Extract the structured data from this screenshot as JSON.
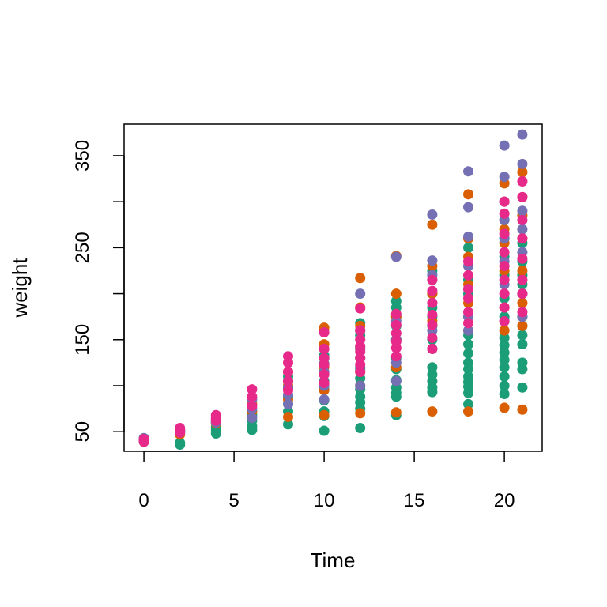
{
  "chart_data": {
    "type": "scatter",
    "title": "",
    "xlabel": "Time",
    "ylabel": "weight",
    "xlim": [
      -1.1,
      22.1
    ],
    "ylim": [
      28.7,
      384.3
    ],
    "xticks": [
      0,
      5,
      10,
      15,
      20
    ],
    "yticks": [
      50,
      150,
      250,
      350
    ],
    "xtick_labels": [
      "0",
      "5",
      "10",
      "15",
      "20"
    ],
    "ytick_labels": [
      "50",
      "150",
      "250",
      "350"
    ],
    "grid": false,
    "legend": "none",
    "series": [
      {
        "color": "#1b9e77",
        "points": [
          [
            0,
            42
          ],
          [
            0,
            40
          ],
          [
            0,
            41
          ],
          [
            0,
            43
          ],
          [
            2,
            38
          ],
          [
            2,
            36
          ],
          [
            2,
            49
          ],
          [
            2,
            51
          ],
          [
            4,
            48
          ],
          [
            4,
            55
          ],
          [
            4,
            52
          ],
          [
            4,
            60
          ],
          [
            6,
            52
          ],
          [
            6,
            56
          ],
          [
            6,
            62
          ],
          [
            6,
            68
          ],
          [
            8,
            58
          ],
          [
            8,
            72
          ],
          [
            8,
            80
          ],
          [
            8,
            88
          ],
          [
            8,
            97
          ],
          [
            8,
            105
          ],
          [
            8,
            110
          ],
          [
            10,
            51
          ],
          [
            10,
            67
          ],
          [
            10,
            72
          ],
          [
            10,
            84
          ],
          [
            10,
            96
          ],
          [
            10,
            105
          ],
          [
            10,
            114
          ],
          [
            10,
            124
          ],
          [
            10,
            133
          ],
          [
            10,
            140
          ],
          [
            12,
            54
          ],
          [
            12,
            75
          ],
          [
            12,
            82
          ],
          [
            12,
            88
          ],
          [
            12,
            96
          ],
          [
            12,
            108
          ],
          [
            12,
            118
          ],
          [
            12,
            130
          ],
          [
            12,
            142
          ],
          [
            12,
            155
          ],
          [
            12,
            160
          ],
          [
            12,
            168
          ],
          [
            14,
            68
          ],
          [
            14,
            88
          ],
          [
            14,
            92
          ],
          [
            14,
            98
          ],
          [
            14,
            106
          ],
          [
            14,
            118
          ],
          [
            14,
            130
          ],
          [
            14,
            150
          ],
          [
            14,
            165
          ],
          [
            14,
            175
          ],
          [
            14,
            185
          ],
          [
            14,
            192
          ],
          [
            16,
            93
          ],
          [
            16,
            98
          ],
          [
            16,
            105
          ],
          [
            16,
            112
          ],
          [
            16,
            120
          ],
          [
            16,
            150
          ],
          [
            16,
            165
          ],
          [
            16,
            175
          ],
          [
            16,
            185
          ],
          [
            16,
            200
          ],
          [
            16,
            215
          ],
          [
            16,
            225
          ],
          [
            18,
            80
          ],
          [
            18,
            92
          ],
          [
            18,
            99
          ],
          [
            18,
            104
          ],
          [
            18,
            110
          ],
          [
            18,
            118
          ],
          [
            18,
            125
          ],
          [
            18,
            135
          ],
          [
            18,
            145
          ],
          [
            18,
            155
          ],
          [
            18,
            175
          ],
          [
            18,
            200
          ],
          [
            18,
            215
          ],
          [
            18,
            250
          ],
          [
            20,
            91
          ],
          [
            20,
            100
          ],
          [
            20,
            110
          ],
          [
            20,
            120
          ],
          [
            20,
            128
          ],
          [
            20,
            136
          ],
          [
            20,
            144
          ],
          [
            20,
            152
          ],
          [
            20,
            175
          ],
          [
            20,
            195
          ],
          [
            20,
            220
          ],
          [
            20,
            240
          ],
          [
            20,
            260
          ],
          [
            20,
            280
          ],
          [
            21,
            98
          ],
          [
            21,
            118
          ],
          [
            21,
            125
          ],
          [
            21,
            145
          ],
          [
            21,
            155
          ],
          [
            21,
            165
          ],
          [
            21,
            175
          ],
          [
            21,
            200
          ],
          [
            21,
            210
          ],
          [
            21,
            220
          ],
          [
            21,
            235
          ],
          [
            21,
            255
          ]
        ]
      },
      {
        "color": "#d95f02",
        "points": [
          [
            0,
            42
          ],
          [
            0,
            41
          ],
          [
            2,
            50
          ],
          [
            2,
            47
          ],
          [
            4,
            59
          ],
          [
            4,
            62
          ],
          [
            6,
            72
          ],
          [
            6,
            80
          ],
          [
            8,
            66
          ],
          [
            8,
            85
          ],
          [
            8,
            100
          ],
          [
            8,
            115
          ],
          [
            10,
            68
          ],
          [
            10,
            95
          ],
          [
            10,
            120
          ],
          [
            10,
            145
          ],
          [
            10,
            163
          ],
          [
            12,
            70
          ],
          [
            12,
            100
          ],
          [
            12,
            115
          ],
          [
            12,
            140
          ],
          [
            12,
            165
          ],
          [
            12,
            185
          ],
          [
            12,
            217
          ],
          [
            14,
            71
          ],
          [
            14,
            120
          ],
          [
            14,
            150
          ],
          [
            14,
            175
          ],
          [
            14,
            200
          ],
          [
            14,
            241
          ],
          [
            16,
            72
          ],
          [
            16,
            140
          ],
          [
            16,
            170
          ],
          [
            16,
            200
          ],
          [
            16,
            230
          ],
          [
            16,
            275
          ],
          [
            18,
            72
          ],
          [
            18,
            160
          ],
          [
            18,
            190
          ],
          [
            18,
            210
          ],
          [
            18,
            240
          ],
          [
            18,
            260
          ],
          [
            18,
            308
          ],
          [
            20,
            76
          ],
          [
            20,
            160
          ],
          [
            20,
            185
          ],
          [
            20,
            225
          ],
          [
            20,
            255
          ],
          [
            20,
            270
          ],
          [
            20,
            300
          ],
          [
            20,
            320
          ],
          [
            21,
            74
          ],
          [
            21,
            165
          ],
          [
            21,
            190
          ],
          [
            21,
            225
          ],
          [
            21,
            260
          ],
          [
            21,
            285
          ],
          [
            21,
            305
          ],
          [
            21,
            332
          ]
        ]
      },
      {
        "color": "#7570b3",
        "points": [
          [
            0,
            41
          ],
          [
            0,
            43
          ],
          [
            2,
            50
          ],
          [
            2,
            52
          ],
          [
            4,
            60
          ],
          [
            4,
            64
          ],
          [
            6,
            65
          ],
          [
            6,
            75
          ],
          [
            6,
            85
          ],
          [
            8,
            80
          ],
          [
            8,
            90
          ],
          [
            8,
            98
          ],
          [
            10,
            85
          ],
          [
            10,
            100
          ],
          [
            10,
            115
          ],
          [
            10,
            130
          ],
          [
            12,
            100
          ],
          [
            12,
            120
          ],
          [
            12,
            140
          ],
          [
            12,
            160
          ],
          [
            12,
            200
          ],
          [
            14,
            105
          ],
          [
            14,
            125
          ],
          [
            14,
            150
          ],
          [
            14,
            170
          ],
          [
            14,
            240
          ],
          [
            16,
            140
          ],
          [
            16,
            160
          ],
          [
            16,
            190
          ],
          [
            16,
            220
          ],
          [
            16,
            236
          ],
          [
            16,
            286
          ],
          [
            18,
            160
          ],
          [
            18,
            175
          ],
          [
            18,
            205
          ],
          [
            18,
            230
          ],
          [
            18,
            262
          ],
          [
            18,
            294
          ],
          [
            18,
            333
          ],
          [
            20,
            170
          ],
          [
            20,
            210
          ],
          [
            20,
            235
          ],
          [
            20,
            260
          ],
          [
            20,
            280
          ],
          [
            20,
            300
          ],
          [
            20,
            327
          ],
          [
            20,
            361
          ],
          [
            21,
            175
          ],
          [
            21,
            200
          ],
          [
            21,
            245
          ],
          [
            21,
            270
          ],
          [
            21,
            290
          ],
          [
            21,
            341
          ],
          [
            21,
            373
          ]
        ]
      },
      {
        "color": "#e7298a",
        "points": [
          [
            0,
            39
          ],
          [
            0,
            41
          ],
          [
            0,
            42
          ],
          [
            2,
            49
          ],
          [
            2,
            52
          ],
          [
            2,
            54
          ],
          [
            4,
            62
          ],
          [
            4,
            65
          ],
          [
            4,
            68
          ],
          [
            6,
            78
          ],
          [
            6,
            88
          ],
          [
            6,
            96
          ],
          [
            8,
            95
          ],
          [
            8,
            105
          ],
          [
            8,
            115
          ],
          [
            8,
            125
          ],
          [
            8,
            132
          ],
          [
            10,
            103
          ],
          [
            10,
            112
          ],
          [
            10,
            123
          ],
          [
            10,
            130
          ],
          [
            10,
            140
          ],
          [
            10,
            158
          ],
          [
            12,
            115
          ],
          [
            12,
            123
          ],
          [
            12,
            130
          ],
          [
            12,
            137
          ],
          [
            12,
            143
          ],
          [
            12,
            150
          ],
          [
            12,
            160
          ],
          [
            12,
            184
          ],
          [
            14,
            132
          ],
          [
            14,
            141
          ],
          [
            14,
            148
          ],
          [
            14,
            157
          ],
          [
            14,
            166
          ],
          [
            14,
            178
          ],
          [
            16,
            140
          ],
          [
            16,
            152
          ],
          [
            16,
            166
          ],
          [
            16,
            177
          ],
          [
            16,
            190
          ],
          [
            16,
            203
          ],
          [
            16,
            215
          ],
          [
            18,
            168
          ],
          [
            18,
            180
          ],
          [
            18,
            195
          ],
          [
            18,
            205
          ],
          [
            18,
            220
          ],
          [
            18,
            235
          ],
          [
            20,
            170
          ],
          [
            20,
            185
          ],
          [
            20,
            200
          ],
          [
            20,
            215
          ],
          [
            20,
            230
          ],
          [
            20,
            245
          ],
          [
            20,
            265
          ],
          [
            20,
            287
          ],
          [
            20,
            300
          ],
          [
            21,
            180
          ],
          [
            21,
            200
          ],
          [
            21,
            215
          ],
          [
            21,
            238
          ],
          [
            21,
            260
          ],
          [
            21,
            280
          ],
          [
            21,
            305
          ],
          [
            21,
            322
          ]
        ]
      }
    ]
  }
}
